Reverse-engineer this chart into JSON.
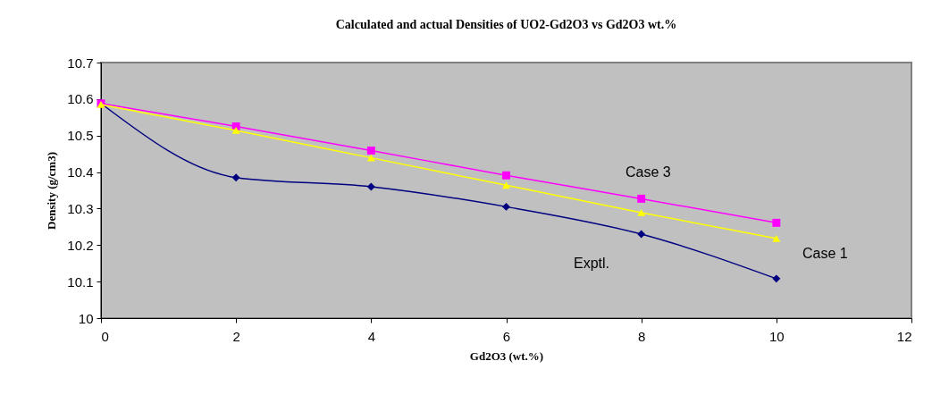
{
  "chart_data": {
    "type": "line",
    "title": "Calculated and actual Densities of UO2-Gd2O3 vs Gd2O3 wt.%",
    "xlabel": "Gd2O3 (wt.%)",
    "ylabel": "Density (g/cm3)",
    "x": [
      0,
      2,
      4,
      6,
      8,
      10
    ],
    "series": [
      {
        "name": "Exptl.",
        "color": "#000080",
        "marker": "diamond",
        "values": [
          10.588,
          10.385,
          10.36,
          10.305,
          10.23,
          10.108
        ]
      },
      {
        "name": "Case 3",
        "color": "#ff00ff",
        "marker": "square",
        "values": [
          10.588,
          10.525,
          10.459,
          10.391,
          10.327,
          10.261
        ]
      },
      {
        "name": "Case 1",
        "color": "#ffff00",
        "marker": "triangle",
        "values": [
          10.585,
          10.514,
          10.439,
          10.364,
          10.289,
          10.218
        ]
      }
    ],
    "xlim": [
      0,
      12
    ],
    "xticks": [
      0,
      2,
      4,
      6,
      8,
      10,
      12
    ],
    "ylim": [
      10,
      10.7
    ],
    "yticks": [
      10,
      10.1,
      10.2,
      10.3,
      10.4,
      10.5,
      10.6,
      10.7
    ],
    "grid": false
  }
}
